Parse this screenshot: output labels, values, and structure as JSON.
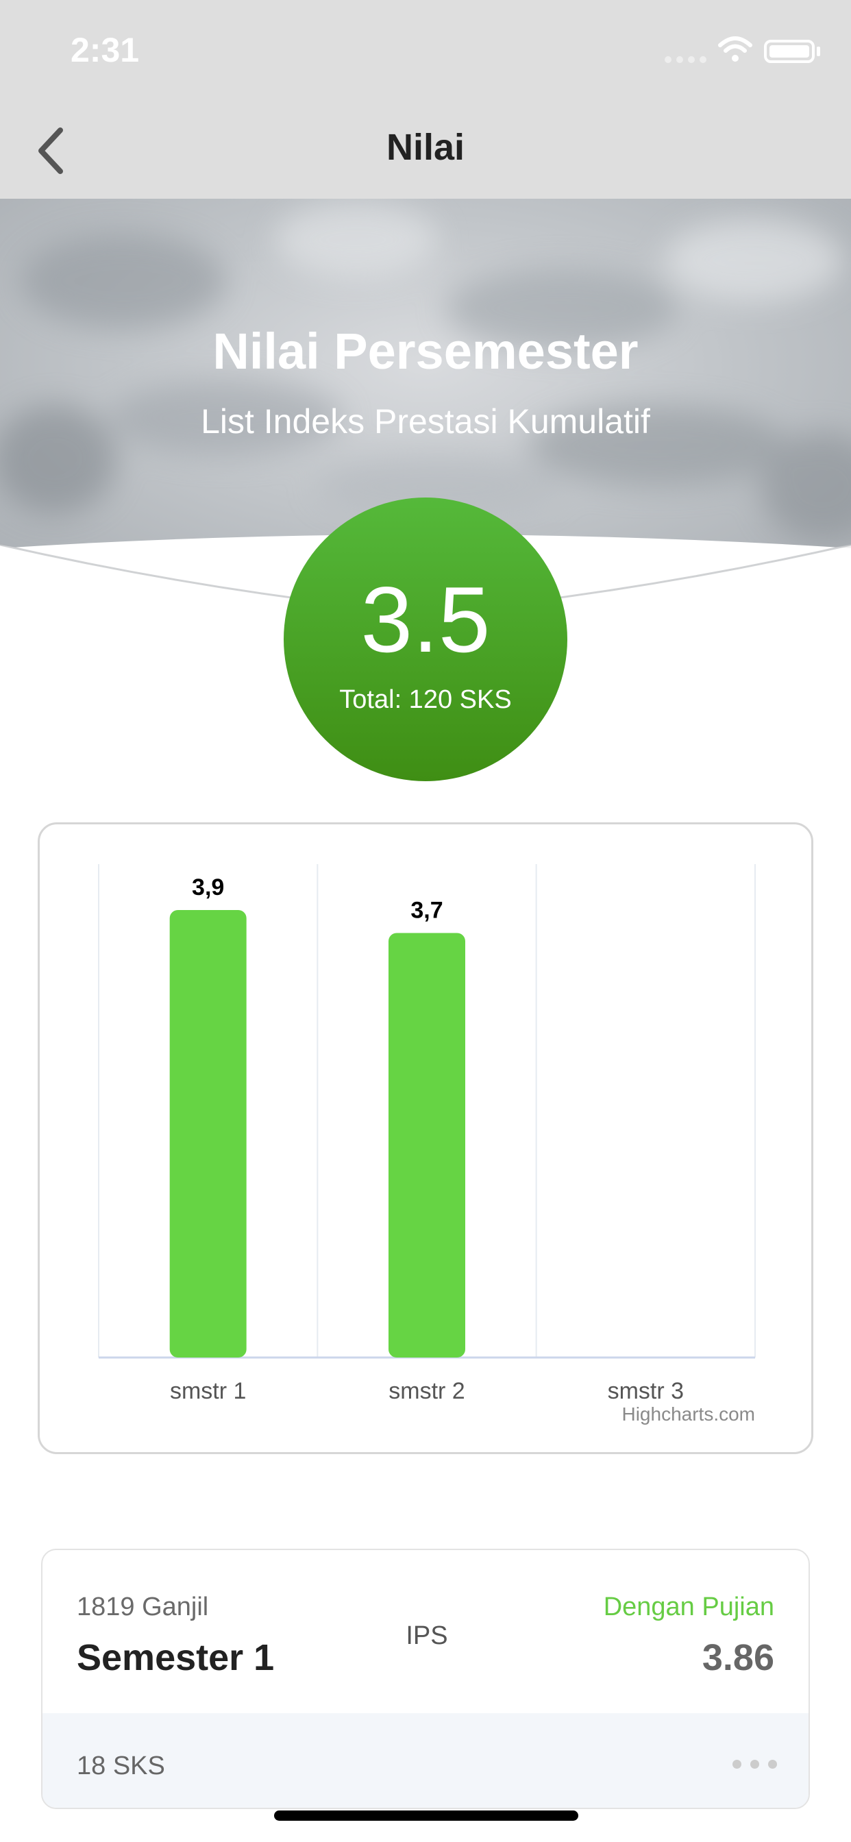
{
  "status_bar": {
    "time": "2:31"
  },
  "nav": {
    "title": "Nilai",
    "back_icon": "chevron-left-icon"
  },
  "hero": {
    "title": "Nilai Persemester",
    "subtitle": "List Indeks Prestasi Kumulatif"
  },
  "score": {
    "value": "3.5",
    "total": "Total: 120 SKS"
  },
  "chart_data": {
    "type": "bar",
    "categories": [
      "smstr 1",
      "smstr 2",
      "smstr 3"
    ],
    "values": [
      3.9,
      3.7,
      null
    ],
    "data_labels": [
      "3,9",
      "3,7",
      ""
    ],
    "ylim": [
      0,
      4.3
    ],
    "grid": true,
    "credit": "Highcharts.com",
    "bar_color": "#66d444"
  },
  "semester_card": {
    "period": "1819 Ganjil",
    "name": "Semester 1",
    "ips_label": "IPS",
    "honor": "Dengan Pujian",
    "ips_value": "3.86",
    "sks": "18 SKS",
    "more_icon": "more-horizontal-icon"
  },
  "colors": {
    "accent_green": "#66cc44",
    "circle_green": "#4a9f24"
  }
}
